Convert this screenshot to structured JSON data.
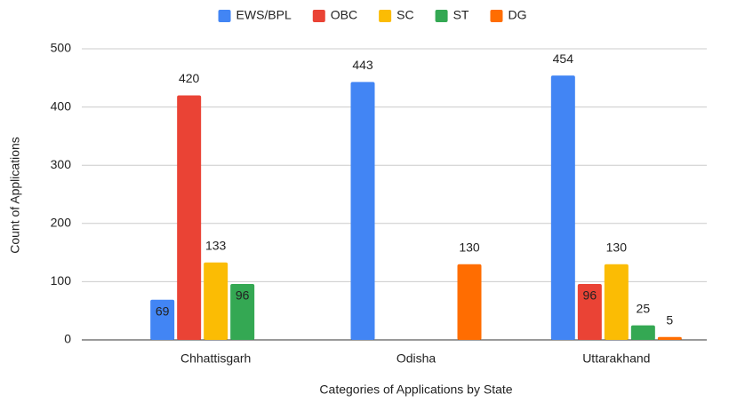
{
  "chart_data": {
    "type": "bar",
    "categories": [
      "Chhattisgarh",
      "Odisha",
      "Uttarakhand"
    ],
    "series": [
      {
        "name": "EWS/BPL",
        "color": "#4285f4",
        "values": [
          69,
          443,
          454
        ]
      },
      {
        "name": "OBC",
        "color": "#ea4335",
        "values": [
          420,
          null,
          96
        ]
      },
      {
        "name": "SC",
        "color": "#fbbc04",
        "values": [
          133,
          null,
          130
        ]
      },
      {
        "name": "ST",
        "color": "#34a853",
        "values": [
          96,
          null,
          25
        ]
      },
      {
        "name": "DG",
        "color": "#ff6d01",
        "values": [
          null,
          130,
          5
        ]
      }
    ],
    "ylim": [
      0,
      500
    ],
    "yticks": [
      0,
      100,
      200,
      300,
      400,
      500
    ],
    "grid": true,
    "xlabel": "Categories of Applications by State",
    "ylabel": "Count of Applications",
    "legend": "top"
  }
}
